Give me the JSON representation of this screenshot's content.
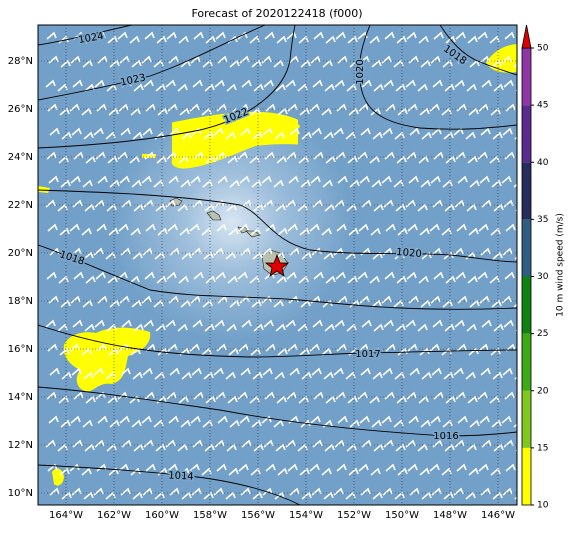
{
  "map": {
    "title": "Forecast of 2020122418 (f000)",
    "lat_ticks": [
      {
        "value": 28,
        "label": "28°N"
      },
      {
        "value": 26,
        "label": "26°N"
      },
      {
        "value": 24,
        "label": "24°N"
      },
      {
        "value": 22,
        "label": "22°N"
      },
      {
        "value": 20,
        "label": "20°N"
      },
      {
        "value": 18,
        "label": "18°N"
      },
      {
        "value": 16,
        "label": "16°N"
      },
      {
        "value": 14,
        "label": "14°N"
      },
      {
        "value": 12,
        "label": "12°N"
      },
      {
        "value": 10,
        "label": "10°N"
      }
    ],
    "lon_ticks": [
      {
        "value": -164,
        "label": "164°W"
      },
      {
        "value": -162,
        "label": "162°W"
      },
      {
        "value": -160,
        "label": "160°W"
      },
      {
        "value": -158,
        "label": "158°W"
      },
      {
        "value": -156,
        "label": "156°W"
      },
      {
        "value": -154,
        "label": "154°W"
      },
      {
        "value": -152,
        "label": "152°W"
      },
      {
        "value": -150,
        "label": "150°W"
      },
      {
        "value": -148,
        "label": "148°W"
      },
      {
        "value": -146,
        "label": "146°W"
      }
    ],
    "contour_labels": [
      1024,
      1023,
      1022,
      1020,
      1018,
      1020,
      1018,
      1017,
      1016,
      1014
    ],
    "colorbar": {
      "label": "10 m wind speed (m/s)",
      "ticks": [
        10,
        15,
        20,
        25,
        30,
        35,
        40,
        45,
        50
      ],
      "colors": [
        "#ffff00",
        "#80c81e",
        "#3caa14",
        "#0f820f",
        "#2e5f82",
        "#262c5c",
        "#5a2a8c",
        "#9137a5"
      ],
      "extend_color": "#e00000"
    }
  }
}
